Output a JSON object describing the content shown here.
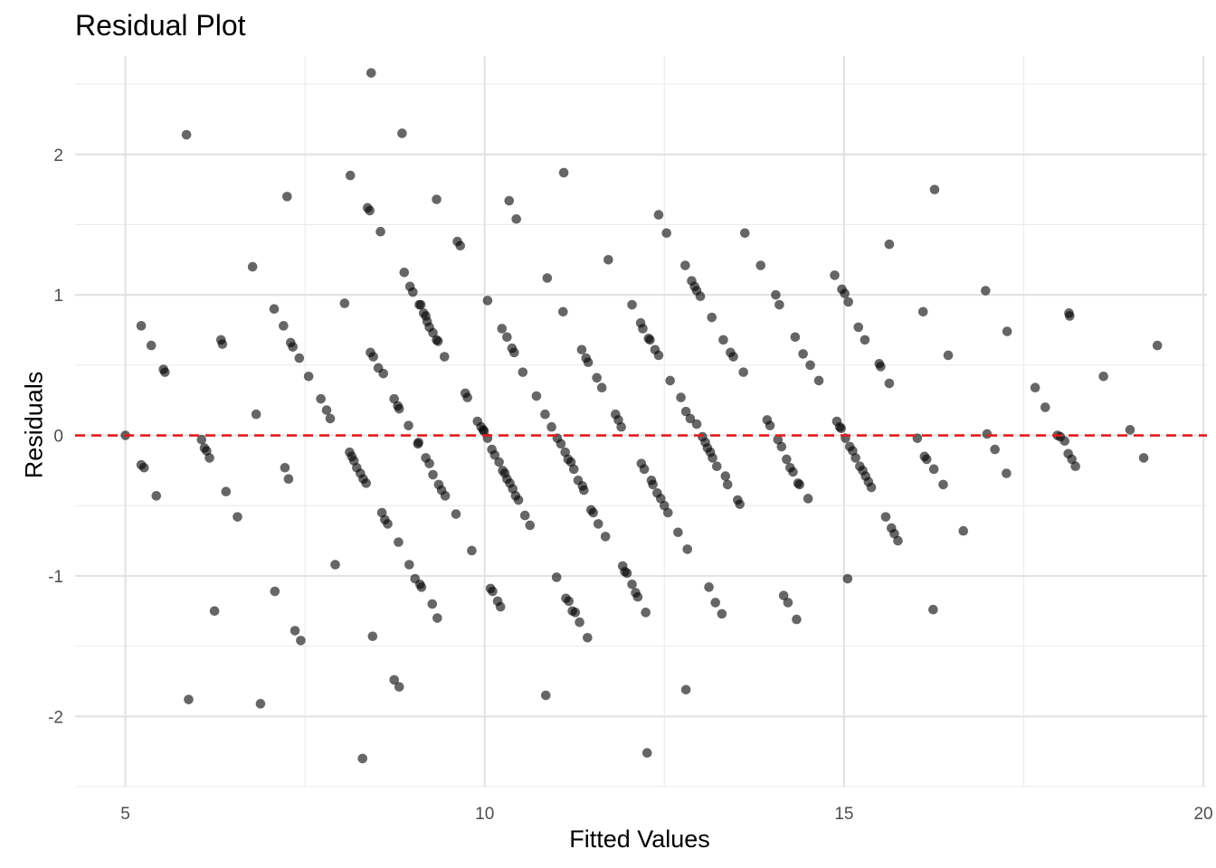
{
  "chart_data": {
    "type": "scatter",
    "title": "Residual Plot",
    "xlabel": "Fitted Values",
    "ylabel": "Residuals",
    "xlim": [
      4.3,
      20.05
    ],
    "ylim": [
      -2.5,
      2.7
    ],
    "x_ticks": [
      5,
      10,
      15,
      20
    ],
    "x_tick_labels": [
      "5",
      "10",
      "15",
      "20"
    ],
    "y_ticks": [
      -2,
      -1,
      0,
      1,
      2
    ],
    "y_tick_labels": [
      "-2",
      "-1",
      "0",
      "1",
      "2"
    ],
    "grid": true,
    "reference_line": {
      "y": 0,
      "style": "dashed",
      "color": "#e41a1c"
    },
    "point_color": "#000000",
    "point_opacity": 0.6,
    "points": [
      [
        5.0,
        0.0
      ],
      [
        5.22,
        0.78
      ],
      [
        5.22,
        -0.21
      ],
      [
        5.26,
        -0.23
      ],
      [
        5.36,
        0.64
      ],
      [
        5.43,
        -0.43
      ],
      [
        5.53,
        0.47
      ],
      [
        5.55,
        0.45
      ],
      [
        5.85,
        2.14
      ],
      [
        5.88,
        -1.88
      ],
      [
        6.06,
        -0.03
      ],
      [
        6.1,
        -0.09
      ],
      [
        6.13,
        -0.11
      ],
      [
        6.17,
        -0.16
      ],
      [
        6.24,
        -1.25
      ],
      [
        6.33,
        0.68
      ],
      [
        6.35,
        0.65
      ],
      [
        6.4,
        -0.4
      ],
      [
        6.56,
        -0.58
      ],
      [
        6.77,
        1.2
      ],
      [
        6.82,
        0.15
      ],
      [
        6.88,
        -1.91
      ],
      [
        7.07,
        0.9
      ],
      [
        7.08,
        -1.11
      ],
      [
        7.2,
        0.78
      ],
      [
        7.22,
        -0.23
      ],
      [
        7.25,
        1.7
      ],
      [
        7.27,
        -0.31
      ],
      [
        7.3,
        0.66
      ],
      [
        7.33,
        0.63
      ],
      [
        7.36,
        -1.39
      ],
      [
        7.42,
        0.55
      ],
      [
        7.44,
        -1.46
      ],
      [
        7.55,
        0.42
      ],
      [
        7.72,
        0.26
      ],
      [
        7.8,
        0.18
      ],
      [
        7.85,
        0.12
      ],
      [
        7.92,
        -0.92
      ],
      [
        8.05,
        0.94
      ],
      [
        8.12,
        -0.12
      ],
      [
        8.13,
        1.85
      ],
      [
        8.15,
        -0.15
      ],
      [
        8.18,
        -0.18
      ],
      [
        8.22,
        -0.23
      ],
      [
        8.27,
        -0.27
      ],
      [
        8.3,
        -2.3
      ],
      [
        8.31,
        -0.31
      ],
      [
        8.35,
        -0.34
      ],
      [
        8.37,
        1.62
      ],
      [
        8.4,
        1.6
      ],
      [
        8.41,
        0.59
      ],
      [
        8.42,
        2.58
      ],
      [
        8.44,
        -1.43
      ],
      [
        8.45,
        0.56
      ],
      [
        8.52,
        0.48
      ],
      [
        8.55,
        1.45
      ],
      [
        8.57,
        -0.55
      ],
      [
        8.59,
        0.44
      ],
      [
        8.61,
        -0.6
      ],
      [
        8.65,
        -0.63
      ],
      [
        8.74,
        0.26
      ],
      [
        8.74,
        -1.74
      ],
      [
        8.79,
        0.21
      ],
      [
        8.8,
        -0.76
      ],
      [
        8.81,
        0.19
      ],
      [
        8.81,
        -1.79
      ],
      [
        8.85,
        2.15
      ],
      [
        8.88,
        1.16
      ],
      [
        8.94,
        0.07
      ],
      [
        8.95,
        -0.92
      ],
      [
        8.96,
        1.06
      ],
      [
        9.0,
        1.02
      ],
      [
        9.03,
        -1.02
      ],
      [
        9.07,
        -0.06
      ],
      [
        9.08,
        -0.05
      ],
      [
        9.09,
        0.93
      ],
      [
        9.1,
        -1.06
      ],
      [
        9.11,
        0.93
      ],
      [
        9.12,
        -1.08
      ],
      [
        9.15,
        0.87
      ],
      [
        9.18,
        0.85
      ],
      [
        9.18,
        -0.16
      ],
      [
        9.2,
        0.81
      ],
      [
        9.23,
        0.77
      ],
      [
        9.23,
        -0.2
      ],
      [
        9.27,
        -1.2
      ],
      [
        9.28,
        0.73
      ],
      [
        9.28,
        -0.28
      ],
      [
        9.33,
        0.68
      ],
      [
        9.33,
        1.68
      ],
      [
        9.34,
        -1.3
      ],
      [
        9.35,
        0.67
      ],
      [
        9.36,
        -0.35
      ],
      [
        9.4,
        -0.39
      ],
      [
        9.44,
        0.56
      ],
      [
        9.45,
        -0.43
      ],
      [
        9.6,
        -0.56
      ],
      [
        9.62,
        1.38
      ],
      [
        9.66,
        1.35
      ],
      [
        9.73,
        0.3
      ],
      [
        9.76,
        0.27
      ],
      [
        9.82,
        -0.82
      ],
      [
        9.9,
        0.1
      ],
      [
        9.95,
        0.06
      ],
      [
        9.98,
        0.04
      ],
      [
        9.99,
        0.03
      ],
      [
        10.04,
        0.96
      ],
      [
        10.04,
        -0.02
      ],
      [
        10.08,
        -1.09
      ],
      [
        10.1,
        -0.1
      ],
      [
        10.11,
        -1.11
      ],
      [
        10.14,
        -0.14
      ],
      [
        10.18,
        -1.18
      ],
      [
        10.2,
        -0.19
      ],
      [
        10.22,
        -1.22
      ],
      [
        10.24,
        0.76
      ],
      [
        10.25,
        -0.25
      ],
      [
        10.28,
        -0.27
      ],
      [
        10.31,
        0.7
      ],
      [
        10.31,
        -0.31
      ],
      [
        10.34,
        1.67
      ],
      [
        10.35,
        -0.34
      ],
      [
        10.38,
        0.62
      ],
      [
        10.39,
        -0.38
      ],
      [
        10.41,
        0.59
      ],
      [
        10.43,
        -0.43
      ],
      [
        10.44,
        1.54
      ],
      [
        10.47,
        -0.46
      ],
      [
        10.53,
        0.45
      ],
      [
        10.56,
        -0.57
      ],
      [
        10.63,
        -0.64
      ],
      [
        10.72,
        0.28
      ],
      [
        10.84,
        0.15
      ],
      [
        10.85,
        -1.85
      ],
      [
        10.87,
        1.12
      ],
      [
        10.93,
        0.06
      ],
      [
        11.0,
        -1.01
      ],
      [
        11.01,
        -0.02
      ],
      [
        11.06,
        -0.06
      ],
      [
        11.09,
        0.88
      ],
      [
        11.1,
        1.87
      ],
      [
        11.12,
        -0.12
      ],
      [
        11.13,
        -1.16
      ],
      [
        11.16,
        -0.17
      ],
      [
        11.17,
        -1.18
      ],
      [
        11.2,
        -0.19
      ],
      [
        11.22,
        -1.25
      ],
      [
        11.24,
        -0.24
      ],
      [
        11.26,
        -1.26
      ],
      [
        11.3,
        -0.32
      ],
      [
        11.32,
        -1.33
      ],
      [
        11.35,
        0.61
      ],
      [
        11.36,
        -0.36
      ],
      [
        11.38,
        -0.39
      ],
      [
        11.41,
        0.55
      ],
      [
        11.43,
        -1.44
      ],
      [
        11.44,
        0.52
      ],
      [
        11.48,
        -0.53
      ],
      [
        11.51,
        -0.55
      ],
      [
        11.56,
        0.41
      ],
      [
        11.58,
        -0.63
      ],
      [
        11.63,
        0.34
      ],
      [
        11.68,
        -0.72
      ],
      [
        11.72,
        1.25
      ],
      [
        11.82,
        0.15
      ],
      [
        11.86,
        0.11
      ],
      [
        11.9,
        0.06
      ],
      [
        11.92,
        -0.93
      ],
      [
        11.95,
        -0.97
      ],
      [
        11.98,
        -0.98
      ],
      [
        12.05,
        0.93
      ],
      [
        12.05,
        -1.06
      ],
      [
        12.1,
        -1.12
      ],
      [
        12.13,
        -1.15
      ],
      [
        12.17,
        0.8
      ],
      [
        12.18,
        -0.2
      ],
      [
        12.2,
        0.76
      ],
      [
        12.22,
        -0.24
      ],
      [
        12.24,
        -1.26
      ],
      [
        12.26,
        -2.26
      ],
      [
        12.28,
        0.69
      ],
      [
        12.3,
        0.68
      ],
      [
        12.32,
        -0.32
      ],
      [
        12.34,
        -0.35
      ],
      [
        12.37,
        0.61
      ],
      [
        12.4,
        -0.41
      ],
      [
        12.42,
        0.57
      ],
      [
        12.42,
        1.57
      ],
      [
        12.45,
        -0.45
      ],
      [
        12.5,
        -0.5
      ],
      [
        12.53,
        1.44
      ],
      [
        12.55,
        -0.55
      ],
      [
        12.58,
        0.39
      ],
      [
        12.69,
        -0.69
      ],
      [
        12.73,
        0.27
      ],
      [
        12.79,
        1.21
      ],
      [
        12.8,
        0.17
      ],
      [
        12.8,
        -1.81
      ],
      [
        12.82,
        -0.81
      ],
      [
        12.86,
        0.12
      ],
      [
        12.88,
        1.1
      ],
      [
        12.92,
        1.06
      ],
      [
        12.95,
        0.08
      ],
      [
        12.95,
        1.03
      ],
      [
        13.0,
        0.99
      ],
      [
        13.03,
        -0.01
      ],
      [
        13.07,
        -0.05
      ],
      [
        13.1,
        -0.09
      ],
      [
        13.12,
        -1.08
      ],
      [
        13.14,
        -0.12
      ],
      [
        13.16,
        0.84
      ],
      [
        13.17,
        -0.16
      ],
      [
        13.21,
        -1.19
      ],
      [
        13.23,
        -0.22
      ],
      [
        13.3,
        -1.27
      ],
      [
        13.32,
        0.68
      ],
      [
        13.35,
        -0.29
      ],
      [
        13.38,
        -0.35
      ],
      [
        13.42,
        0.59
      ],
      [
        13.46,
        0.56
      ],
      [
        13.52,
        -0.46
      ],
      [
        13.55,
        -0.49
      ],
      [
        13.6,
        0.45
      ],
      [
        13.62,
        1.44
      ],
      [
        13.84,
        1.21
      ],
      [
        13.93,
        0.11
      ],
      [
        13.97,
        0.07
      ],
      [
        14.05,
        1.0
      ],
      [
        14.08,
        -0.03
      ],
      [
        14.1,
        0.93
      ],
      [
        14.13,
        -0.08
      ],
      [
        14.16,
        -1.14
      ],
      [
        14.2,
        -0.17
      ],
      [
        14.22,
        -1.19
      ],
      [
        14.25,
        -0.23
      ],
      [
        14.29,
        -0.26
      ],
      [
        14.32,
        0.7
      ],
      [
        14.34,
        -1.31
      ],
      [
        14.36,
        -0.34
      ],
      [
        14.38,
        -0.35
      ],
      [
        14.43,
        0.58
      ],
      [
        14.5,
        -0.45
      ],
      [
        14.53,
        0.5
      ],
      [
        14.65,
        0.39
      ],
      [
        14.87,
        1.14
      ],
      [
        14.9,
        0.1
      ],
      [
        14.94,
        0.06
      ],
      [
        14.96,
        0.05
      ],
      [
        14.97,
        1.04
      ],
      [
        15.01,
        1.01
      ],
      [
        15.02,
        -0.02
      ],
      [
        15.05,
        -1.02
      ],
      [
        15.06,
        0.95
      ],
      [
        15.08,
        -0.08
      ],
      [
        15.12,
        -0.11
      ],
      [
        15.16,
        -0.16
      ],
      [
        15.2,
        0.77
      ],
      [
        15.22,
        -0.22
      ],
      [
        15.26,
        -0.25
      ],
      [
        15.29,
        0.68
      ],
      [
        15.3,
        -0.29
      ],
      [
        15.34,
        -0.33
      ],
      [
        15.38,
        -0.37
      ],
      [
        15.49,
        0.51
      ],
      [
        15.51,
        0.49
      ],
      [
        15.58,
        -0.58
      ],
      [
        15.63,
        1.36
      ],
      [
        15.63,
        0.37
      ],
      [
        15.66,
        -0.66
      ],
      [
        15.7,
        -0.7
      ],
      [
        15.75,
        -0.75
      ],
      [
        16.02,
        -0.02
      ],
      [
        16.1,
        0.88
      ],
      [
        16.12,
        -0.15
      ],
      [
        16.15,
        -0.17
      ],
      [
        16.24,
        -1.24
      ],
      [
        16.25,
        -0.24
      ],
      [
        16.26,
        1.75
      ],
      [
        16.38,
        -0.35
      ],
      [
        16.45,
        0.57
      ],
      [
        16.66,
        -0.68
      ],
      [
        16.97,
        1.03
      ],
      [
        16.99,
        0.01
      ],
      [
        17.1,
        -0.1
      ],
      [
        17.26,
        -0.27
      ],
      [
        17.27,
        0.74
      ],
      [
        17.66,
        0.34
      ],
      [
        17.8,
        0.2
      ],
      [
        17.97,
        0.0
      ],
      [
        18.01,
        -0.01
      ],
      [
        18.07,
        -0.04
      ],
      [
        18.12,
        -0.13
      ],
      [
        18.13,
        0.87
      ],
      [
        18.14,
        0.85
      ],
      [
        18.17,
        -0.17
      ],
      [
        18.22,
        -0.22
      ],
      [
        18.61,
        0.42
      ],
      [
        18.98,
        0.04
      ],
      [
        19.17,
        -0.16
      ],
      [
        19.36,
        0.64
      ]
    ]
  }
}
